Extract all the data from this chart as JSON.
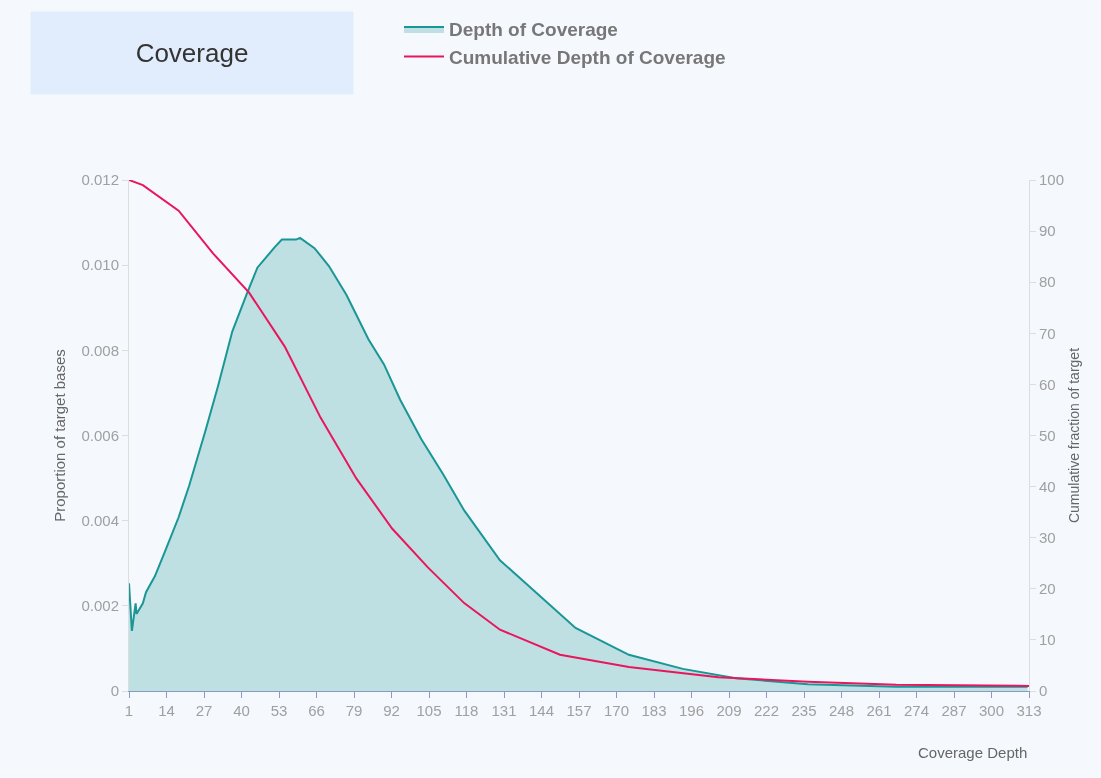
{
  "chart_data": {
    "type": "line",
    "title": "Coverage",
    "xlabel": "Coverage Depth",
    "ylabel": "Proportion of target bases",
    "y2label": "Cumulative fraction of target",
    "x": [
      1,
      2,
      3.3,
      3.6,
      5.8,
      6.9,
      10,
      13.8,
      18.2,
      21.9,
      27.4,
      31.9,
      36.8,
      41.7,
      45.5,
      51.6,
      54,
      58.9,
      60.3,
      65.3,
      70.3,
      76.4,
      84,
      89.4,
      95,
      102.3,
      109.9,
      117.2,
      129.6,
      142,
      155.8,
      174.3,
      193,
      211.4,
      236.3,
      267,
      312.5
    ],
    "series": [
      {
        "name": "Depth of Coverage",
        "type": "area",
        "color": "#1a9696",
        "values": [
          0.00253,
          0.00141,
          0.00206,
          0.00181,
          0.00206,
          0.00232,
          0.0027,
          0.00333,
          0.00408,
          0.00483,
          0.00609,
          0.00717,
          0.00844,
          0.0093,
          0.00994,
          0.01043,
          0.0106,
          0.0106,
          0.01064,
          0.0104,
          0.00998,
          0.0093,
          0.00826,
          0.00767,
          0.00684,
          0.00592,
          0.00509,
          0.00424,
          0.00307,
          0.00232,
          0.00148,
          0.00085,
          0.00052,
          0.0003,
          0.00016,
          0.0001,
          0.0001
        ]
      },
      {
        "name": "Cumulative Depth of Coverage",
        "axis": "y2",
        "color": "#e8175d",
        "x": [
          1,
          5.8,
          18.2,
          30.2,
          42.7,
          55,
          67.4,
          79.8,
          92.2,
          104.6,
          117.2,
          129.6,
          150.4,
          174.3,
          205.3,
          236.3,
          267,
          313
        ],
        "values": [
          100,
          99,
          94,
          85.6,
          77.9,
          67.4,
          53.5,
          41.6,
          31.8,
          24.2,
          17.2,
          12,
          7.1,
          4.7,
          2.7,
          1.8,
          1.2,
          1.0
        ]
      }
    ],
    "xlim": [
      1,
      313
    ],
    "xticks": [
      1,
      14,
      27,
      40,
      53,
      66,
      79,
      92,
      105,
      118,
      131,
      144,
      157,
      170,
      183,
      196,
      209,
      222,
      235,
      248,
      261,
      274,
      287,
      300,
      313
    ],
    "ylim": [
      0,
      0.012
    ],
    "yticks": [
      {
        "value": 0,
        "label": "0"
      },
      {
        "value": 0.002,
        "label": "0.002"
      },
      {
        "value": 0.004,
        "label": "0.004"
      },
      {
        "value": 0.006,
        "label": "0.006"
      },
      {
        "value": 0.008,
        "label": "0.008"
      },
      {
        "value": 0.01,
        "label": "0.010"
      },
      {
        "value": 0.012,
        "label": "0.012"
      }
    ],
    "y2lim": [
      0,
      100
    ],
    "y2ticks": [
      0,
      10,
      20,
      30,
      40,
      50,
      60,
      70,
      80,
      90,
      100
    ],
    "grid": false,
    "legend": "top",
    "marker": "none"
  }
}
